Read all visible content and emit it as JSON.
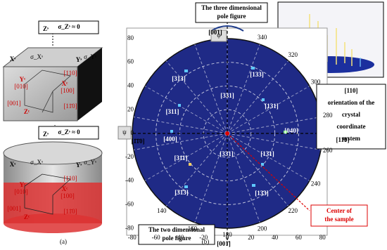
{
  "panel_a": {
    "top": {
      "z_axis": "Zˢ",
      "sigma_z": "σ_Zˢ ≈ 0",
      "x_axis": "Xˢ",
      "y_axis": "Yˢ",
      "sigma_x": "σ_Xˢ",
      "sigma_y": "σ_Yˢ",
      "dir_110": "[110]",
      "yc": "Yᶜ",
      "dir_010": "[010]",
      "xc": "Xᶜ",
      "dir_100": "[100]",
      "dir_001": "[001]",
      "zc": "Zᶜ",
      "dir_1b10": "[11̄0]"
    },
    "bottom": {
      "z_axis": "Zˢ",
      "sigma_z": "σ_Zˢ ≈ 0",
      "x_axis": "Xˢ",
      "y_axis": "Yˢ",
      "sigma_x": "σ_Xˢ",
      "sigma_y": "σ_Yˢ",
      "dir_110": "[110]",
      "yc": "Yᶜ",
      "dir_010": "[010]",
      "xc": "Xᶜ",
      "dir_100": "[100]",
      "dir_001": "[001]",
      "zc": "Zᶜ",
      "dir_1b10": "[11̄0]"
    },
    "caption": "(a)"
  },
  "panel_b": {
    "caption": "(b)",
    "title_3d": [
      "The three dimensional",
      "pole figure"
    ],
    "title_2d": [
      "The two dimensional",
      "pole figure"
    ],
    "orientation_note": [
      "[110]",
      "orientation of the",
      "crystal",
      "coordinate",
      "system"
    ],
    "center_note": [
      "Center of",
      "the sample"
    ],
    "phi": "φ",
    "psi": "ψ",
    "angle_labels": [
      340,
      320,
      300,
      280,
      260,
      240,
      220,
      200,
      180,
      160,
      140
    ],
    "y_ticks": [
      80,
      60,
      40,
      20,
      0,
      -20,
      -40,
      -60,
      -80
    ],
    "x_ticks": [
      -80,
      -60,
      -40,
      -20,
      0,
      20,
      40,
      60,
      80
    ],
    "poles": {
      "top": "[001]",
      "bottom": "[001̄]",
      "right": "[11̄0]",
      "left": "[1̄1̄0]",
      "p133": "[133]",
      "p313": "[313]",
      "p331": "[331]",
      "p311": "[311]",
      "p131": "[131]",
      "p040": "[040]",
      "p400": "[400]",
      "p3b31": "[33̄1]",
      "p31b1": "[31̄1]",
      "p13b1": "[13̄1]",
      "p31b3": "[31̄3]",
      "p13b3": "[13̄3]"
    }
  }
}
